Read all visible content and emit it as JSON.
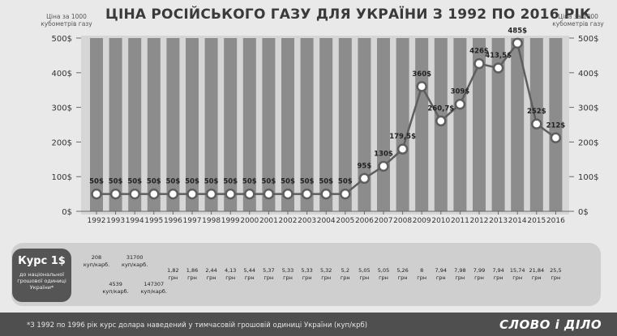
{
  "title": "ЦІНА РОСІЙСЬКОГО ГАЗУ ДЛЯ УКРАЇНИ З 1992 ПО 2016 РІК",
  "unit_label": "Ціна за 1000 кубометрів газу",
  "rate_panel": {
    "title": "Курс 1$",
    "subtitle": "до національної грошової одиниці України*"
  },
  "footnote": "*З 1992 по 1996 рік курс долара наведений у тимчасовій грошовій одиниці України (куп/крб)",
  "logo": "СЛОВО і ДІЛО",
  "colors": {
    "bar": "#8c8c8c",
    "line": "#5e5e5e",
    "marker_fill": "#ffffff",
    "marker_stroke": "#5e5e5e",
    "label": "#222222"
  },
  "chart_data": {
    "type": "line",
    "title": "ЦІНА РОСІЙСЬКОГО ГАЗУ ДЛЯ УКРАЇНИ З 1992 ПО 2016 РІК",
    "ylabel": "Ціна за 1000 кубометрів газу",
    "ylim": [
      0,
      500
    ],
    "yticks": [
      "0$",
      "100$",
      "200$",
      "300$",
      "400$",
      "500$"
    ],
    "grid": false,
    "categories": [
      "1992",
      "1993",
      "1994",
      "1995",
      "1996",
      "1997",
      "1998",
      "1999",
      "2000",
      "2001",
      "2002",
      "2003",
      "2004",
      "2005",
      "2006",
      "2007",
      "2008",
      "2009",
      "2010",
      "2011",
      "2012",
      "2013",
      "2014",
      "2015",
      "2016"
    ],
    "values": [
      50,
      50,
      50,
      50,
      50,
      50,
      50,
      50,
      50,
      50,
      50,
      50,
      50,
      50,
      95,
      130,
      179.5,
      360,
      260.7,
      309,
      426,
      413.5,
      485,
      252,
      212
    ],
    "value_labels": [
      "50$",
      "50$",
      "50$",
      "50$",
      "50$",
      "50$",
      "50$",
      "50$",
      "50$",
      "50$",
      "50$",
      "50$",
      "50$",
      "50$",
      "95$",
      "130$",
      "179,5$",
      "360$",
      "260,7$",
      "309$",
      "426$",
      "413,5$",
      "485$",
      "252$",
      "212$"
    ],
    "exchange_rates": [
      "208\nкуп/карб.",
      "4539\nкуп/карб.",
      "31700\nкуп/карб.",
      "147307\nкуп/карб.",
      "1,82\nгрн",
      "1,86\nгрн",
      "2,44\nгрн",
      "4,13\nгрн",
      "5,44\nгрн",
      "5,37\nгрн",
      "5,33\nгрн",
      "5,33\nгрн",
      "5,32\nгрн",
      "5,2\nгрн",
      "5,05\nгрн",
      "5,05\nгрн",
      "5,26\nгрн",
      "8\nгрн",
      "7,94\nгрн",
      "7,98\nгрн",
      "7,99\nгрн",
      "7,94\nгрн",
      "15,74\nгрн",
      "21,84\nгрн",
      "25,5\nгрн"
    ]
  }
}
